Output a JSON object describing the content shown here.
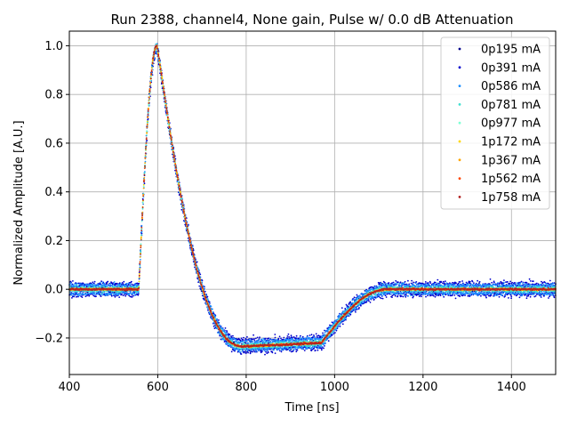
{
  "chart_data": {
    "type": "scatter",
    "title": "Run 2388, channel4, None gain, Pulse w/ 0.0 dB Attenuation",
    "xlabel": "Time [ns]",
    "ylabel": "Normalized Amplitude [A.U.]",
    "xlim": [
      400,
      1500
    ],
    "ylim": [
      -0.35,
      1.06
    ],
    "xticks": [
      400,
      600,
      800,
      1000,
      1200,
      1400
    ],
    "yticks": [
      -0.2,
      0.0,
      0.2,
      0.4,
      0.6,
      0.8,
      1.0
    ],
    "xtick_labels": [
      "400",
      "600",
      "800",
      "1000",
      "1200",
      "1400"
    ],
    "ytick_labels": [
      "−0.2",
      "0.0",
      "0.2",
      "0.4",
      "0.6",
      "0.8",
      "1.0"
    ],
    "grid": true,
    "legend_position": "top-right",
    "pulse_shape": {
      "baseline": 0.0,
      "rise_start_ns": 557,
      "peak_ns": 598,
      "peak_value": 1.0,
      "undershoot_ns": 790,
      "undershoot_value": -0.235,
      "recovery_start_ns": 970,
      "recovery_end_ns": 1120
    },
    "series": [
      {
        "name": "0p195 mA",
        "color": "#00008b",
        "noise": 0.02,
        "offset": 0.0
      },
      {
        "name": "0p391 mA",
        "color": "#0000cd",
        "noise": 0.015,
        "offset": 0.02
      },
      {
        "name": "0p586 mA",
        "color": "#1e90ff",
        "noise": 0.01,
        "offset": 0.015
      },
      {
        "name": "0p781 mA",
        "color": "#40e0d0",
        "noise": 0.007,
        "offset": 0.005
      },
      {
        "name": "0p977 mA",
        "color": "#7fffd4",
        "noise": 0.005,
        "offset": 0.0
      },
      {
        "name": "1p172 mA",
        "color": "#ffd700",
        "noise": 0.004,
        "offset": 0.0
      },
      {
        "name": "1p367 mA",
        "color": "#ffa500",
        "noise": 0.004,
        "offset": 0.0
      },
      {
        "name": "1p562 mA",
        "color": "#ff4500",
        "noise": 0.004,
        "offset": 0.0
      },
      {
        "name": "1p758 mA",
        "color": "#b22222",
        "noise": 0.004,
        "offset": 0.0
      }
    ]
  }
}
